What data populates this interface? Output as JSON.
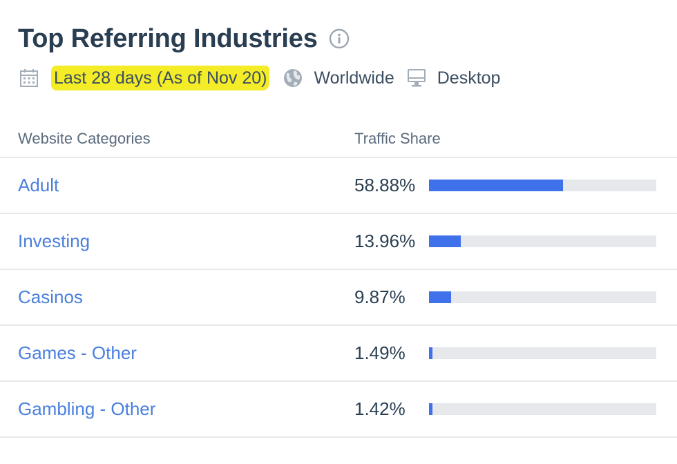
{
  "header": {
    "title": "Top Referring Industries",
    "info_icon": "info-circle-icon",
    "date_range": "Last 28 days (As of Nov 20)",
    "geo": "Worldwide",
    "device": "Desktop",
    "highlight_color": "#f3ec26"
  },
  "table": {
    "columns": [
      "Website Categories",
      "Traffic Share"
    ],
    "rows": [
      {
        "category": "Adult",
        "share_text": "58.88%",
        "share": 58.88
      },
      {
        "category": "Investing",
        "share_text": "13.96%",
        "share": 13.96
      },
      {
        "category": "Casinos",
        "share_text": "9.87%",
        "share": 9.87
      },
      {
        "category": "Games - Other",
        "share_text": "1.49%",
        "share": 1.49
      },
      {
        "category": "Gambling - Other",
        "share_text": "1.42%",
        "share": 1.42
      }
    ]
  },
  "colors": {
    "bar_fill": "#3f71ea",
    "bar_track": "#e6e8ec",
    "link": "#4a7fde",
    "title": "#2a3e52"
  }
}
